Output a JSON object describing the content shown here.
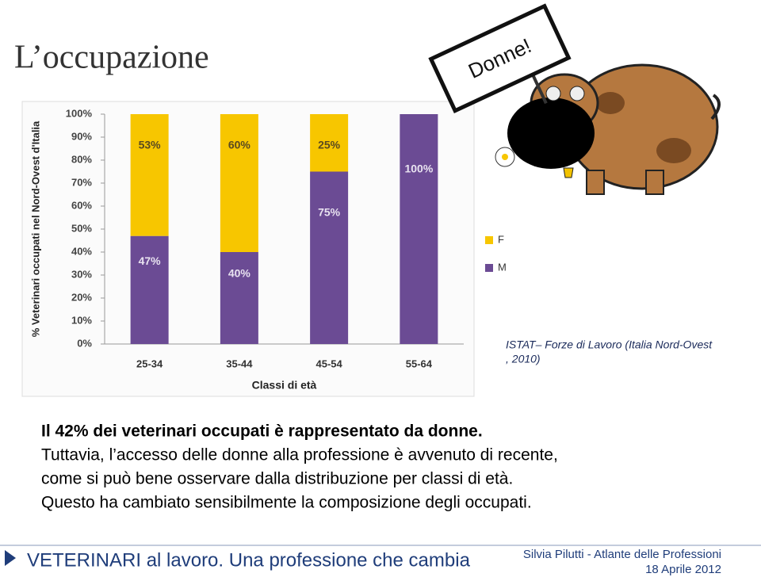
{
  "title": "L’occupazione",
  "sign": "Donne!",
  "chart_data": {
    "type": "stacked-bar",
    "y_label": "% Veterinari occupati  nel Nord-Ovest d'Italia",
    "x_label": "Classi di età",
    "categories": [
      "25-34",
      "35-44",
      "45-54",
      "55-64"
    ],
    "series": [
      {
        "name": "M",
        "color": "#6b4b94",
        "values": [
          47,
          40,
          75,
          100
        ],
        "value_labels": [
          "47%",
          "40%",
          "75%",
          "100%"
        ]
      },
      {
        "name": "F",
        "color": "#f7c600",
        "values": [
          53,
          60,
          25,
          0
        ],
        "value_labels": [
          "53%",
          "60%",
          "25%",
          null
        ]
      }
    ],
    "ylim": [
      0,
      100
    ],
    "yticks": [
      {
        "value": 0,
        "label": "0%"
      },
      {
        "value": 10,
        "label": "10%"
      },
      {
        "value": 20,
        "label": "20%"
      },
      {
        "value": 30,
        "label": "30%"
      },
      {
        "value": 40,
        "label": "40%"
      },
      {
        "value": 50,
        "label": "50%"
      },
      {
        "value": 60,
        "label": "60%"
      },
      {
        "value": 70,
        "label": "70%"
      },
      {
        "value": 80,
        "label": "80%"
      },
      {
        "value": 90,
        "label": "90%"
      },
      {
        "value": 100,
        "label": "100%"
      }
    ],
    "grid": false,
    "legend": "right"
  },
  "source": [
    "ISTAT– Forze di Lavoro  (Italia Nord-Ovest",
    ", 2010)"
  ],
  "body": [
    "Il 42% dei veterinari occupati è rappresentato da donne.",
    "Tuttavia, l’accesso delle donne alla professione è avvenuto di recente,",
    "come si può bene osservare dalla distribuzione  per classi di età.",
    "Questo ha cambiato sensibilmente la composizione degli occupati."
  ],
  "footer": {
    "left": "VETERINARI al lavoro. Una professione che cambia",
    "author": "Silvia Pilutti - Atlante delle Professioni",
    "date": "18 Aprile 2012"
  }
}
